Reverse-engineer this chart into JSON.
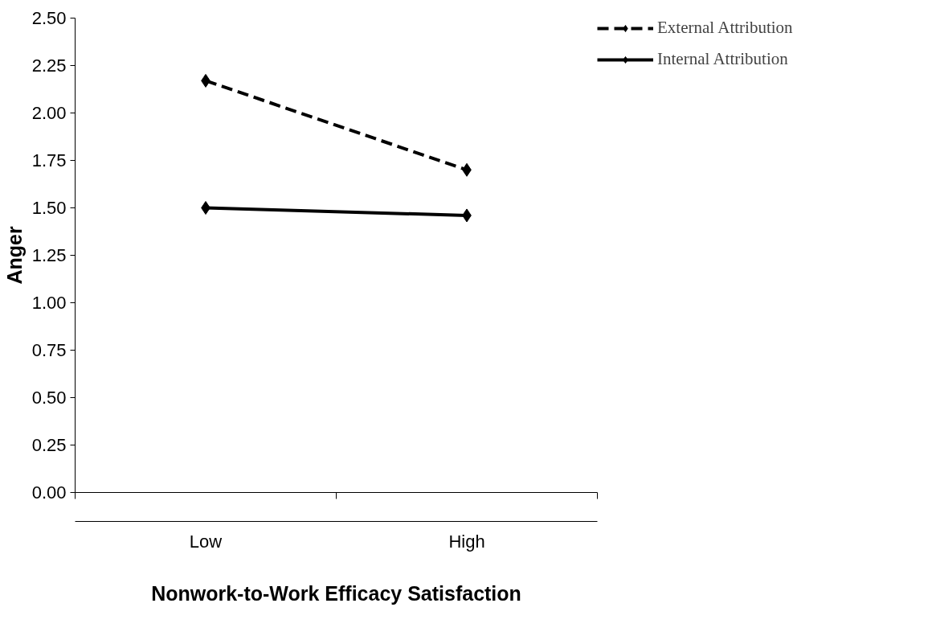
{
  "chart_data": {
    "type": "line",
    "xlabel": "Nonwork-to-Work Efficacy Satisfaction",
    "ylabel": "Anger",
    "categories": [
      "Low",
      "High"
    ],
    "series": [
      {
        "name": "External Attribution",
        "color": "#000000",
        "line_style": "dashed",
        "values": [
          2.17,
          1.7
        ]
      },
      {
        "name": "Internal Attribution",
        "color": "#000000",
        "line_style": "solid",
        "values": [
          1.5,
          1.46
        ]
      }
    ],
    "ylim": [
      0,
      2.5
    ],
    "yticks": [
      {
        "value": 0,
        "label": "0.00"
      },
      {
        "value": 0.25,
        "label": "0.25"
      },
      {
        "value": 0.5,
        "label": "0.50"
      },
      {
        "value": 0.75,
        "label": "0.75"
      },
      {
        "value": 1,
        "label": "1.00"
      },
      {
        "value": 1.25,
        "label": "1.25"
      },
      {
        "value": 1.5,
        "label": "1.50"
      },
      {
        "value": 1.75,
        "label": "1.75"
      },
      {
        "value": 2,
        "label": "2.00"
      },
      {
        "value": 2.25,
        "label": "2.25"
      },
      {
        "value": 2.5,
        "label": "2.50"
      }
    ],
    "grid": false,
    "legend": "top right",
    "marker": "diamond"
  }
}
